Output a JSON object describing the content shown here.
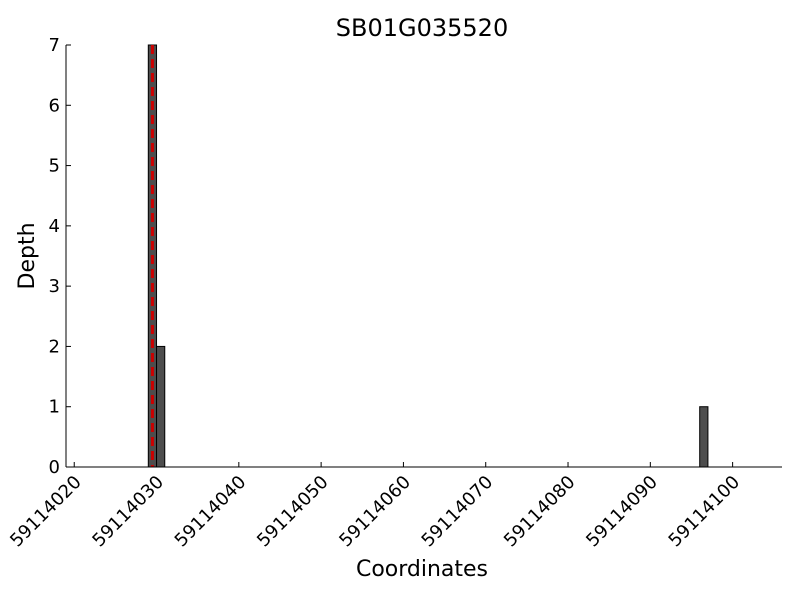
{
  "chart_data": {
    "type": "bar",
    "title": "SB01G035520",
    "x_label": "Coordinates",
    "y_label": "Depth",
    "x": [
      59114029,
      59114030,
      59114096
    ],
    "values": [
      7,
      2,
      1
    ],
    "color": "#4d4d4d",
    "edge_color": "#000000",
    "xlim": [
      59114019,
      59114106
    ],
    "xticks": [
      59114020,
      59114030,
      59114040,
      59114050,
      59114060,
      59114070,
      59114080,
      59114090,
      59114100
    ],
    "ylim": [
      0,
      7
    ],
    "yticks": [
      0,
      1,
      2,
      3,
      4,
      5,
      6,
      7
    ],
    "vline": {
      "x": 59114029.5,
      "color": "#cc0000"
    }
  }
}
